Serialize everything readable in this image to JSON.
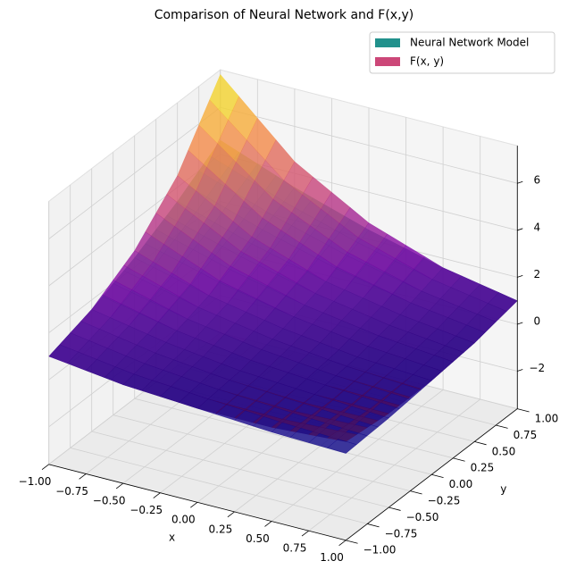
{
  "chart_data": {
    "type": "surface3d",
    "title": "Comparison of Neural Network and F(x,y)",
    "xlabel": "x",
    "ylabel": "y",
    "x": [
      -1,
      -0.5,
      0,
      0.5,
      1
    ],
    "y": [
      -1,
      -0.5,
      0,
      0.5,
      1
    ],
    "xlim": [
      -1,
      1
    ],
    "ylim": [
      -1,
      1
    ],
    "zlim": [
      -3.6,
      7.6
    ],
    "xticks": [
      {
        "value": -1,
        "label": "−1.00"
      },
      {
        "value": -0.75,
        "label": "−0.75"
      },
      {
        "value": -0.5,
        "label": "−0.50"
      },
      {
        "value": -0.25,
        "label": "−0.25"
      },
      {
        "value": 0,
        "label": "0.00"
      },
      {
        "value": 0.25,
        "label": "0.25"
      },
      {
        "value": 0.5,
        "label": "0.50"
      },
      {
        "value": 0.75,
        "label": "0.75"
      },
      {
        "value": 1,
        "label": "1.00"
      }
    ],
    "yticks": [
      {
        "value": -1,
        "label": "−1.00"
      },
      {
        "value": -0.75,
        "label": "−0.75"
      },
      {
        "value": -0.5,
        "label": "−0.50"
      },
      {
        "value": -0.25,
        "label": "−0.25"
      },
      {
        "value": 0,
        "label": "0.00"
      },
      {
        "value": 0.25,
        "label": "0.25"
      },
      {
        "value": 0.5,
        "label": "0.50"
      },
      {
        "value": 0.75,
        "label": "0.75"
      },
      {
        "value": 1,
        "label": "1.00"
      }
    ],
    "zticks": [
      {
        "value": -2,
        "label": "−2"
      },
      0,
      2,
      4,
      6
    ],
    "grid": true,
    "legend": "upper right",
    "series": [
      {
        "name": "Neural Network Model",
        "color": "#21918c",
        "colormap": [
          "#440154",
          "#3b528b",
          "#21918c",
          "#5ec962",
          "#fde725"
        ],
        "opacity": 0.75,
        "z": [
          [
            1.0,
            0.6,
            0.4,
            0.4,
            0.6
          ],
          [
            1.6,
            1.0,
            0.6,
            0.4,
            0.4
          ],
          [
            2.4,
            1.6,
            1.0,
            0.6,
            0.4
          ],
          [
            3.4,
            2.4,
            1.6,
            1.0,
            0.6
          ],
          [
            4.6,
            3.4,
            2.4,
            1.6,
            1.0
          ]
        ]
      },
      {
        "name": "F(x, y)",
        "color": "#cc4778",
        "colormap": [
          "#0d0887",
          "#7e03a8",
          "#cc4778",
          "#f89540",
          "#f0f921"
        ],
        "opacity": 0.8,
        "z": [
          [
            1.0,
            0.6,
            0.4,
            0.2,
            0.1
          ],
          [
            1.6,
            1.0,
            0.6,
            0.4,
            0.2
          ],
          [
            2.7,
            1.6,
            1.0,
            0.6,
            0.4
          ],
          [
            4.5,
            2.7,
            1.6,
            1.0,
            0.6
          ],
          [
            7.4,
            4.5,
            2.7,
            1.6,
            1.0
          ]
        ]
      }
    ]
  }
}
